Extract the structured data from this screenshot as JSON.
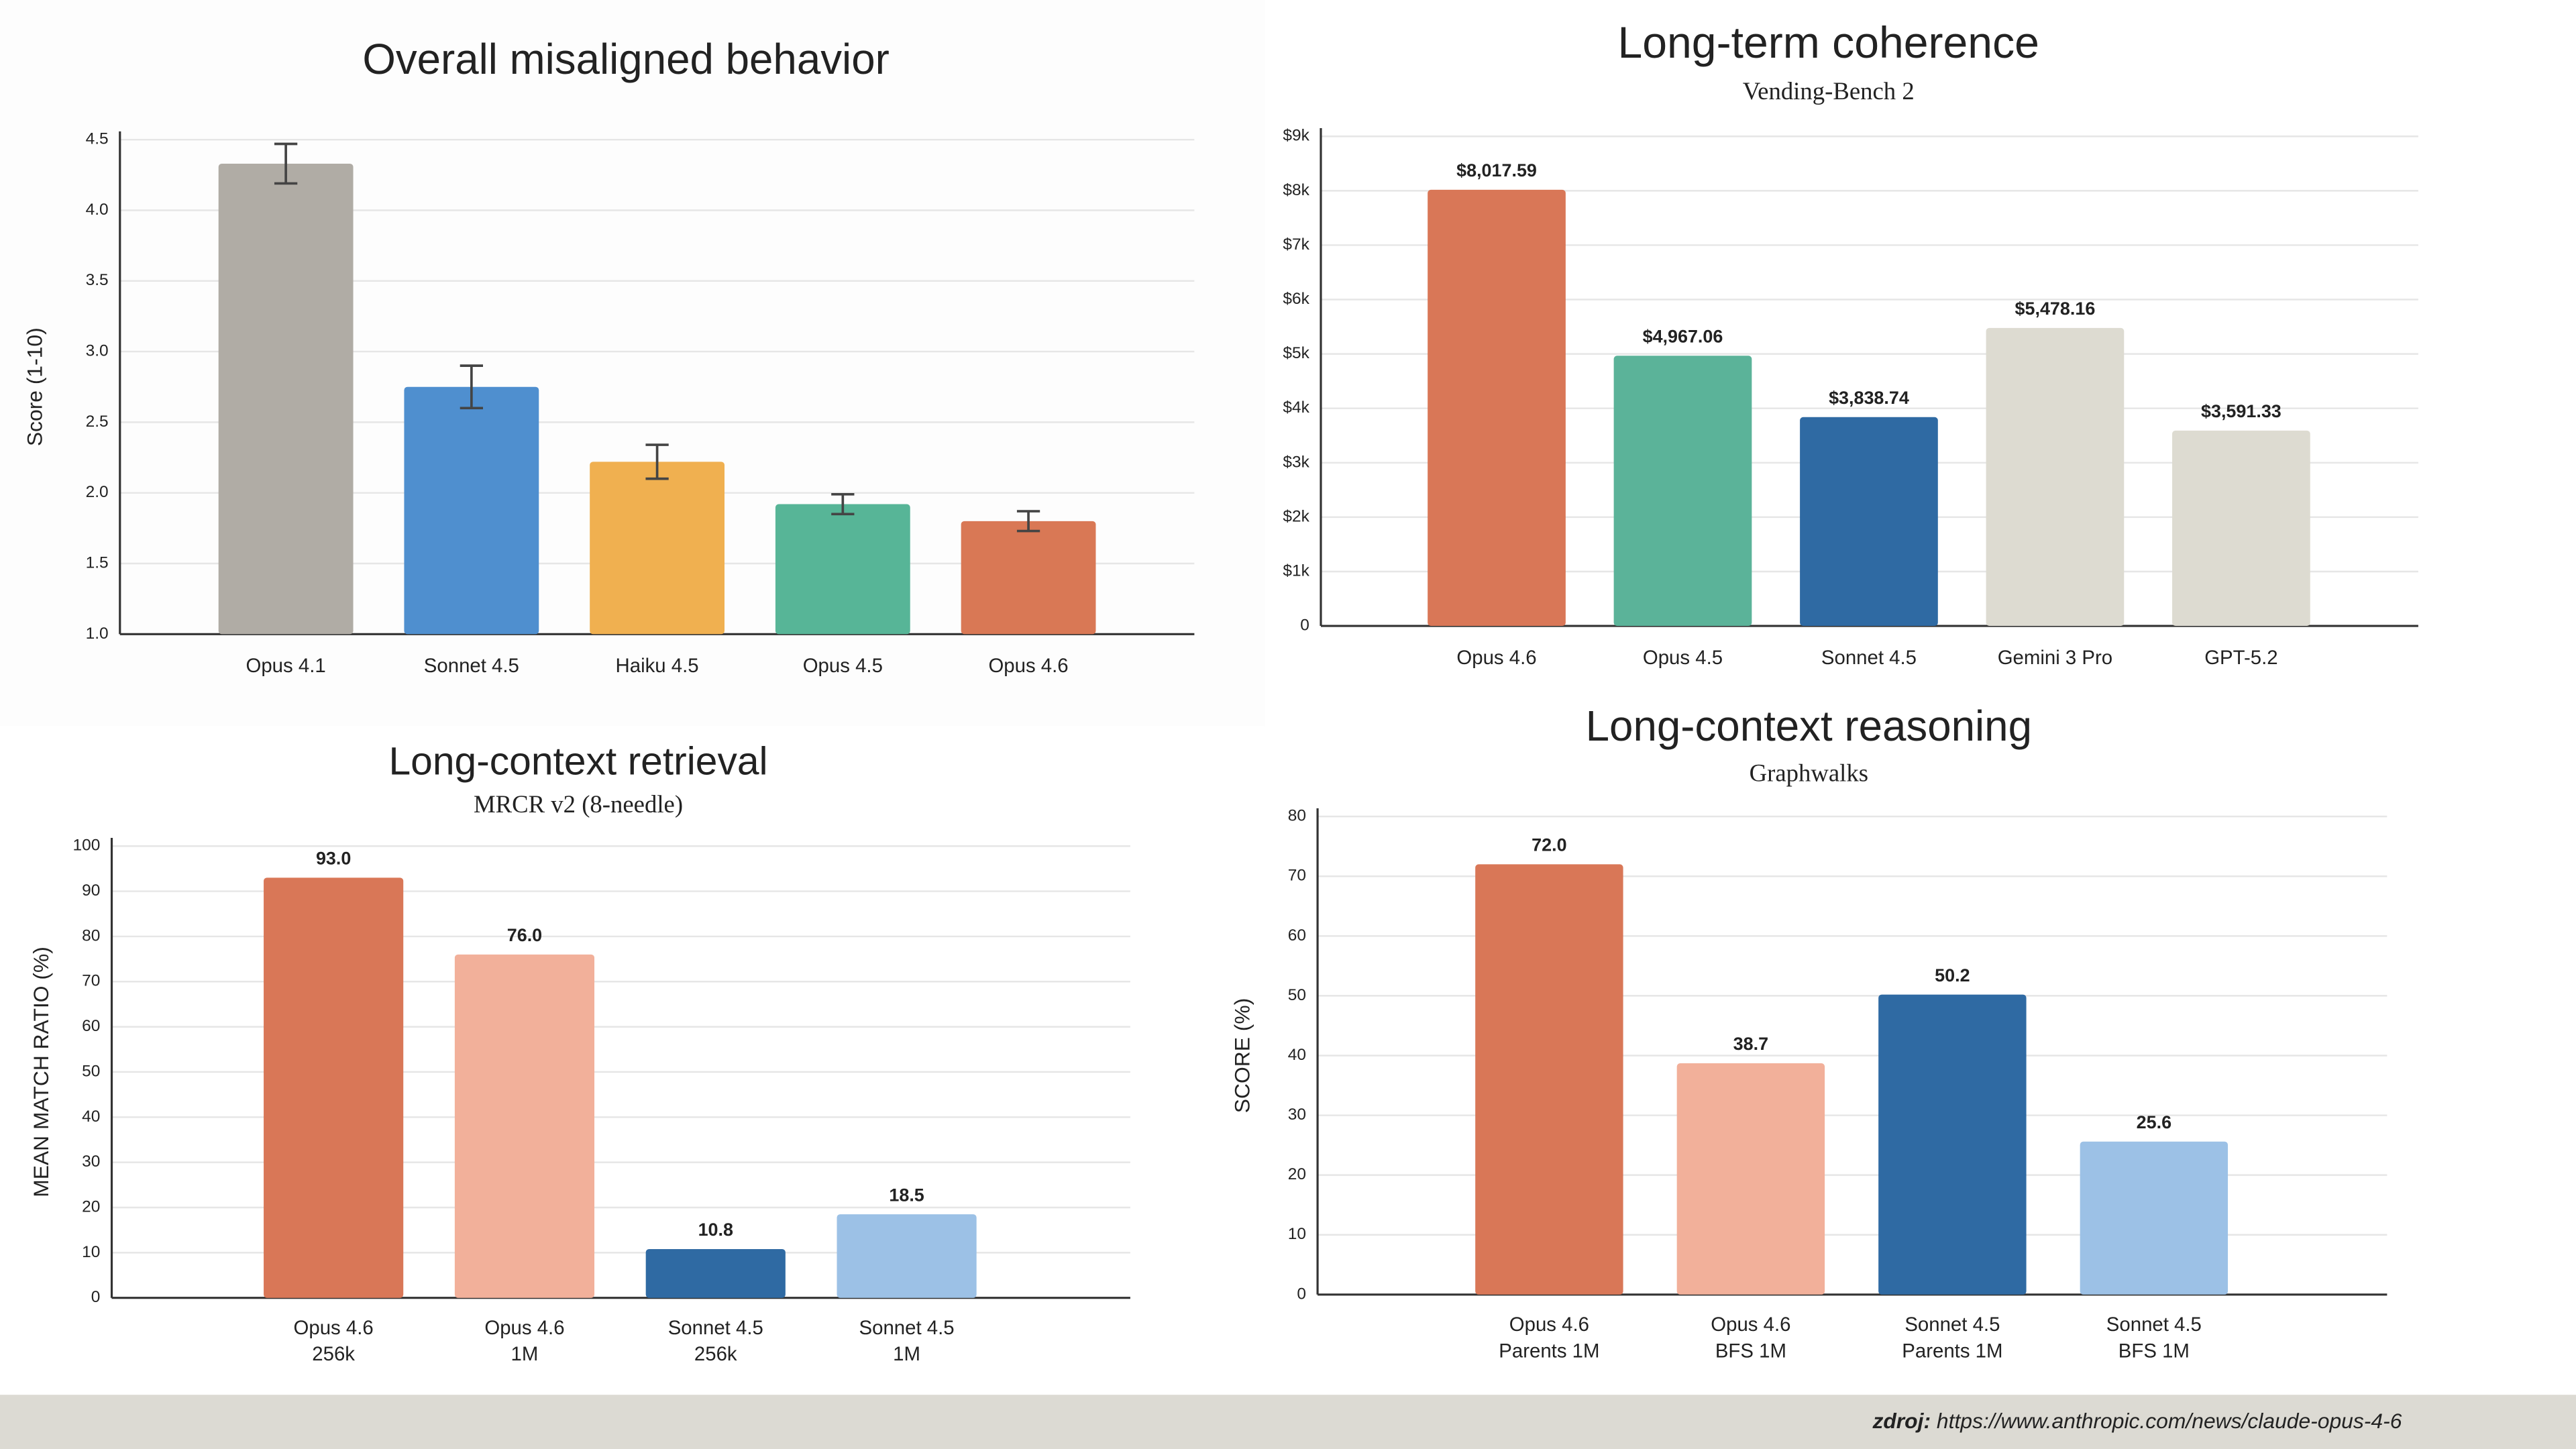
{
  "chart_data": [
    {
      "type": "bar",
      "title": "Overall misaligned behavior",
      "y_label": "Score (1-10)",
      "categories": [
        "Opus 4.1",
        "Sonnet 4.5",
        "Haiku 4.5",
        "Opus 4.5",
        "Opus 4.6"
      ],
      "values": [
        4.33,
        2.75,
        2.22,
        1.92,
        1.8
      ],
      "errors": [
        0.14,
        0.15,
        0.12,
        0.07,
        0.07
      ],
      "colors": [
        "#b0aca5",
        "#4f8fcf",
        "#f0b050",
        "#57b597",
        "#d97855"
      ],
      "ylim": [
        1.0,
        4.5
      ],
      "yticks": [
        {
          "value": 1.0,
          "label": "1.0"
        },
        1.5,
        {
          "value": 2.0,
          "label": "2.0"
        },
        2.5,
        {
          "value": 3.0,
          "label": "3.0"
        },
        3.5,
        {
          "value": 4.0,
          "label": "4.0"
        },
        4.5
      ],
      "grid": true
    },
    {
      "type": "bar",
      "title": "Long-term coherence",
      "subtitle": "Vending-Bench 2",
      "categories": [
        "Opus 4.6",
        "Opus 4.5",
        "Sonnet 4.5",
        "Gemini 3 Pro",
        "GPT-5.2"
      ],
      "values": [
        8017.59,
        4967.06,
        3838.74,
        5478.16,
        3591.33
      ],
      "value_labels": [
        "$8,017.59",
        "$4,967.06",
        "$3,838.74",
        "$5,478.16",
        "$3,591.33"
      ],
      "colors": [
        "#d97757",
        "#5bb399",
        "#2f6aa3",
        "#dddbd1",
        "#dddbd1"
      ],
      "ylim": [
        0,
        9000
      ],
      "yticks": [
        {
          "value": 0,
          "label": "0"
        },
        {
          "value": 1000,
          "label": "$1k"
        },
        {
          "value": 2000,
          "label": "$2k"
        },
        {
          "value": 3000,
          "label": "$3k"
        },
        {
          "value": 4000,
          "label": "$4k"
        },
        {
          "value": 5000,
          "label": "$5k"
        },
        {
          "value": 6000,
          "label": "$6k"
        },
        {
          "value": 7000,
          "label": "$7k"
        },
        {
          "value": 8000,
          "label": "$8k"
        },
        {
          "value": 9000,
          "label": "$9k"
        }
      ],
      "grid": true
    },
    {
      "type": "bar",
      "title": "Long-context retrieval",
      "subtitle": "MRCR v2 (8-needle)",
      "y_label": "MEAN MATCH RATIO (%)",
      "categories": [
        [
          "Opus 4.6",
          "256k"
        ],
        [
          "Opus 4.6",
          "1M"
        ],
        [
          "Sonnet 4.5",
          "256k"
        ],
        [
          "Sonnet 4.5",
          "1M"
        ]
      ],
      "values": [
        93.0,
        76.0,
        10.8,
        18.5
      ],
      "value_labels": [
        "93.0",
        "76.0",
        "10.8",
        "18.5"
      ],
      "colors": [
        "#d97757",
        "#f2b09a",
        "#2f6aa3",
        "#9cc1e6"
      ],
      "ylim": [
        0,
        100
      ],
      "yticks": [
        0,
        10,
        20,
        30,
        40,
        50,
        60,
        70,
        80,
        90,
        100
      ],
      "grid": true
    },
    {
      "type": "bar",
      "title": "Long-context reasoning",
      "subtitle": "Graphwalks",
      "y_label": "SCORE (%)",
      "categories": [
        [
          "Opus 4.6",
          "Parents 1M"
        ],
        [
          "Opus 4.6",
          "BFS 1M"
        ],
        [
          "Sonnet 4.5",
          "Parents 1M"
        ],
        [
          "Sonnet 4.5",
          "BFS 1M"
        ]
      ],
      "values": [
        72.0,
        38.7,
        50.2,
        25.6
      ],
      "value_labels": [
        "72.0",
        "38.7",
        "50.2",
        "25.6"
      ],
      "colors": [
        "#d97757",
        "#f2b09a",
        "#2f6aa3",
        "#9cc1e6"
      ],
      "ylim": [
        0,
        80
      ],
      "yticks": [
        0,
        10,
        20,
        30,
        40,
        50,
        60,
        70,
        80
      ],
      "grid": true
    }
  ],
  "source": {
    "label": "zdroj:",
    "url": "https://www.anthropic.com/news/claude-opus-4-6"
  }
}
